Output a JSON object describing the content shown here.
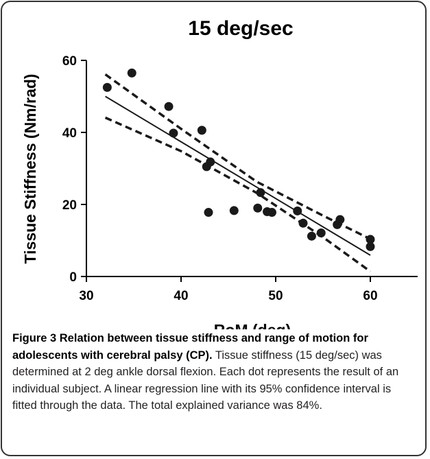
{
  "chart_data": {
    "type": "scatter",
    "title": "15 deg/sec",
    "xlabel": "RoM (deg)",
    "ylabel": "Tissue Stiffness (Nm/rad)",
    "xlim": [
      30,
      65
    ],
    "ylim": [
      0,
      60
    ],
    "xticks": [
      30,
      40,
      50,
      60
    ],
    "yticks": [
      0,
      20,
      40,
      60
    ],
    "grid": false,
    "points": [
      {
        "x": 32.2,
        "y": 52.5
      },
      {
        "x": 34.8,
        "y": 56.5
      },
      {
        "x": 38.7,
        "y": 47.2
      },
      {
        "x": 39.2,
        "y": 39.8
      },
      {
        "x": 42.2,
        "y": 40.6
      },
      {
        "x": 42.7,
        "y": 30.5
      },
      {
        "x": 43.1,
        "y": 31.8
      },
      {
        "x": 42.9,
        "y": 17.8
      },
      {
        "x": 45.6,
        "y": 18.3
      },
      {
        "x": 48.1,
        "y": 19.0
      },
      {
        "x": 48.4,
        "y": 23.3
      },
      {
        "x": 49.1,
        "y": 18.0
      },
      {
        "x": 49.6,
        "y": 17.8
      },
      {
        "x": 52.3,
        "y": 18.2
      },
      {
        "x": 52.9,
        "y": 14.8
      },
      {
        "x": 53.8,
        "y": 11.2
      },
      {
        "x": 54.8,
        "y": 12.1
      },
      {
        "x": 56.5,
        "y": 14.4
      },
      {
        "x": 56.8,
        "y": 15.8
      },
      {
        "x": 60.0,
        "y": 10.3
      },
      {
        "x": 60.0,
        "y": 8.3
      }
    ],
    "regression": {
      "x": [
        32,
        60
      ],
      "y": [
        50.0,
        5.9
      ]
    },
    "ci_upper": {
      "x": [
        32,
        40,
        48,
        55,
        60
      ],
      "y": [
        56.1,
        41.0,
        26.3,
        16.9,
        10.4
      ]
    },
    "ci_lower": {
      "x": [
        32,
        40,
        48,
        55,
        60
      ],
      "y": [
        44.1,
        34.8,
        23.2,
        10.9,
        1.4
      ]
    }
  },
  "caption": {
    "figure_label": "Figure 3 Relation between tissue stiffness and range of motion for adolescents with cerebral palsy (CP).",
    "text": " Tissue stiffness (15 deg/sec) was determined at 2 deg ankle dorsal flexion. Each dot represents the result of an individual subject. A linear regression line with its 95% confidence interval is fitted through the data. The total explained variance was 84%."
  },
  "colors": {
    "marker": "#1a1a1a",
    "line": "#1a1a1a",
    "border": "#333333",
    "caption_text": "#231f20"
  }
}
